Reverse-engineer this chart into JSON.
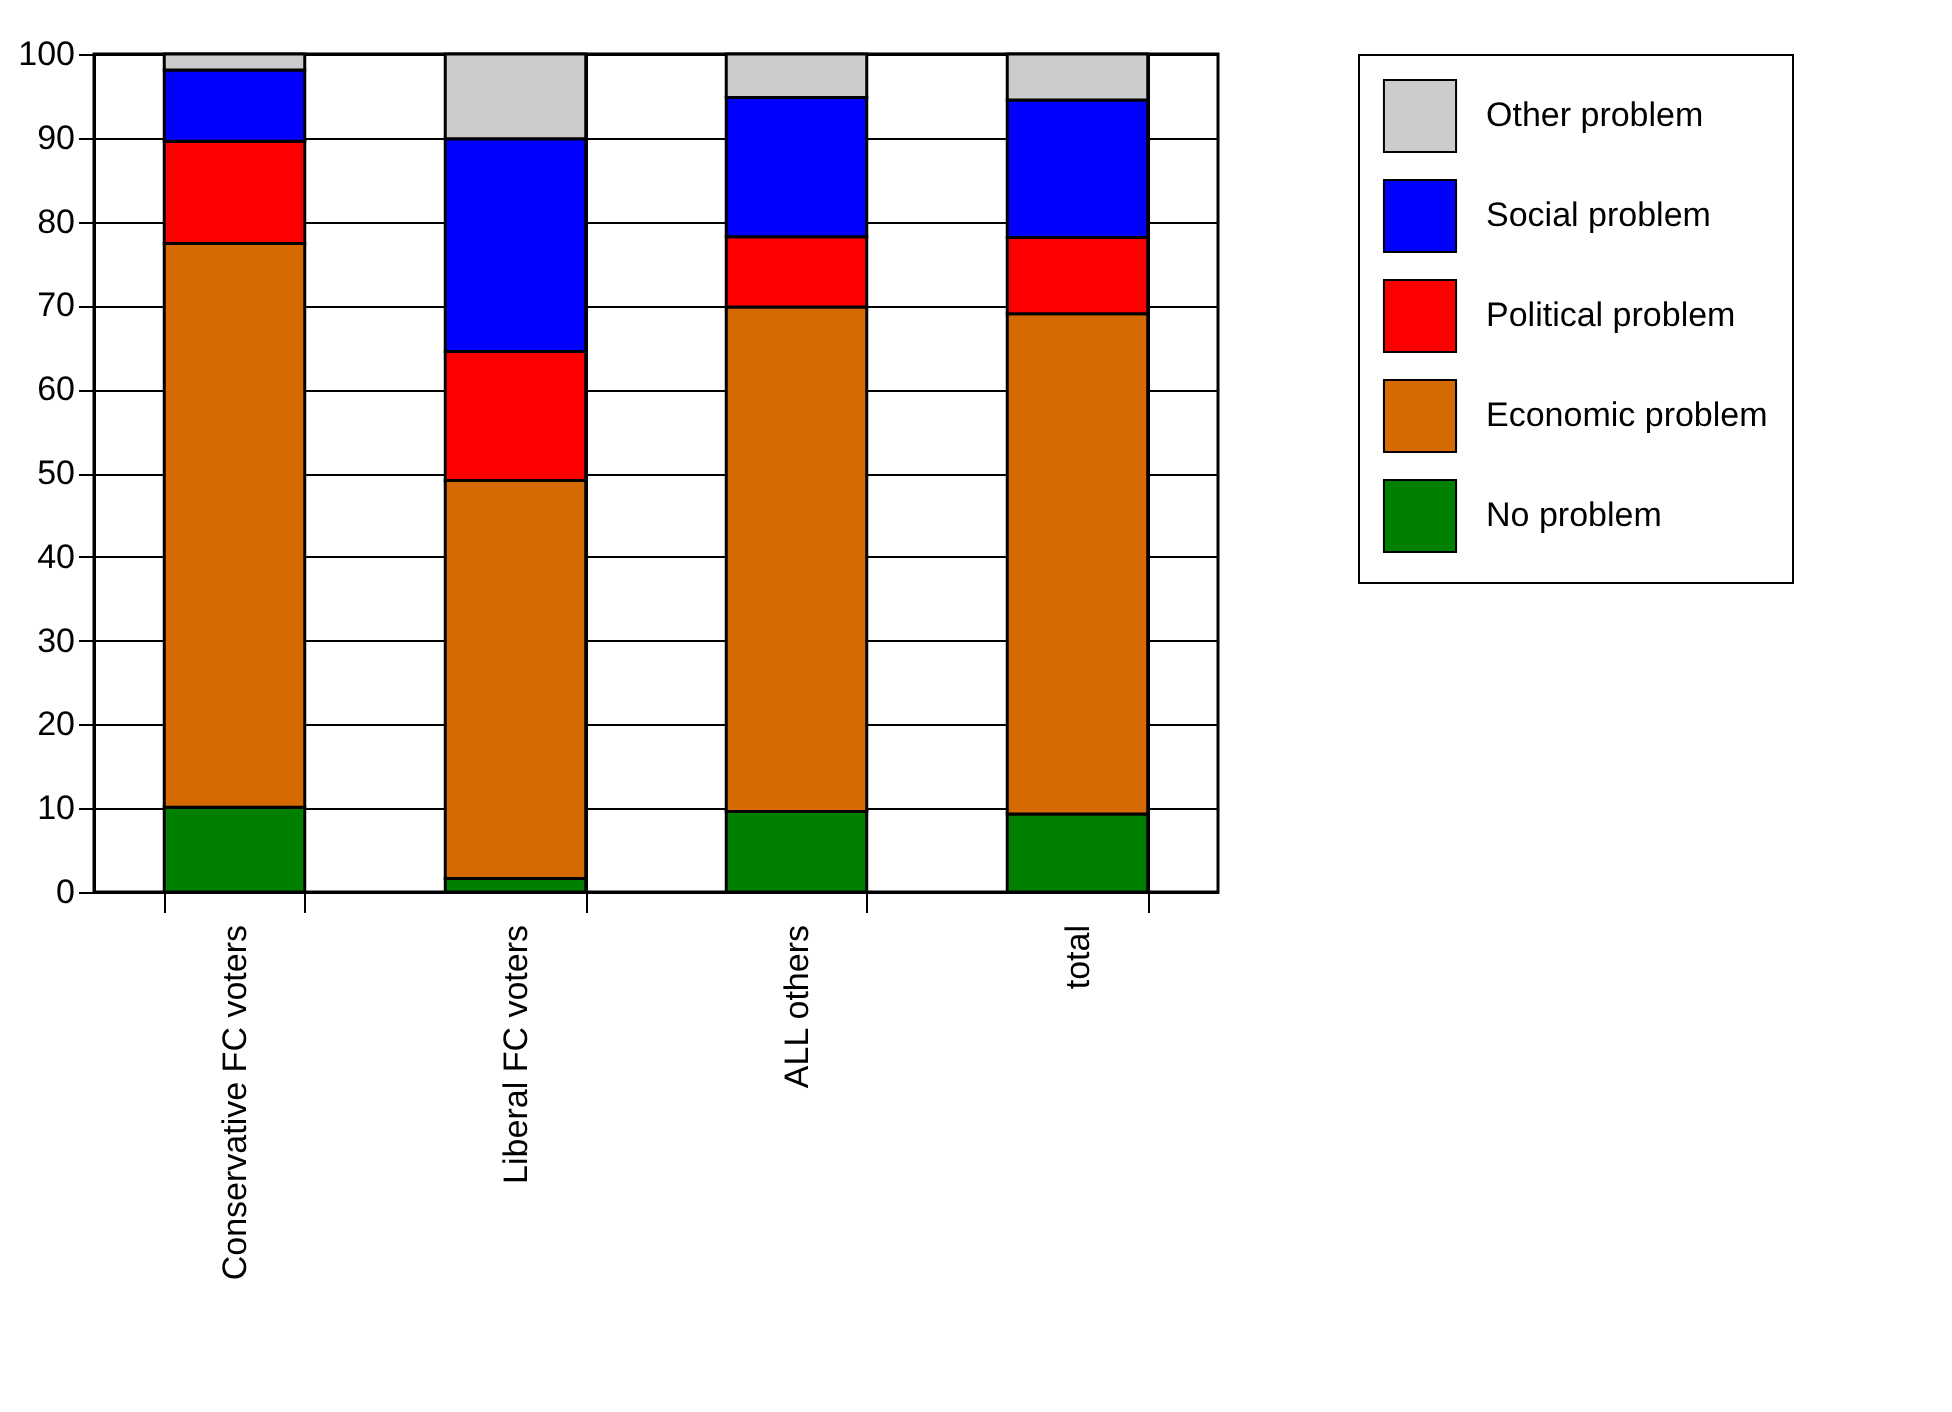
{
  "chart_data": {
    "type": "bar",
    "stacked": true,
    "categories": [
      "Conservative FC voters",
      "Liberal FC voters",
      "ALL others",
      "total"
    ],
    "series": [
      {
        "name": "No problem",
        "color": "#008000",
        "values": [
          10.1,
          1.6,
          9.6,
          9.3
        ]
      },
      {
        "name": "Economic problem",
        "color": "#d46a00",
        "values": [
          67.3,
          47.5,
          60.2,
          59.7
        ]
      },
      {
        "name": "Political problem",
        "color": "#ff0000",
        "values": [
          12.2,
          15.4,
          8.4,
          9.1
        ]
      },
      {
        "name": "Social problem",
        "color": "#0000ff",
        "values": [
          8.5,
          25.4,
          16.6,
          16.4
        ]
      },
      {
        "name": "Other problem",
        "color": "#cccccc",
        "values": [
          1.9,
          10.1,
          5.2,
          5.5
        ]
      }
    ],
    "ylim": [
      0,
      100
    ],
    "yticks": [
      0,
      10,
      20,
      30,
      40,
      50,
      60,
      70,
      80,
      90,
      100
    ],
    "grid": true,
    "legend": "top right"
  }
}
